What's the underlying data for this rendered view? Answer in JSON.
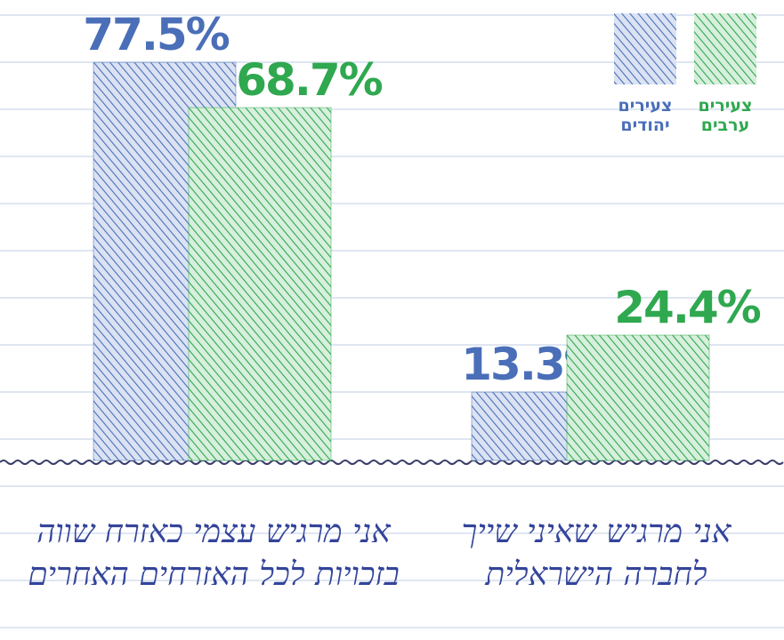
{
  "chart_data": {
    "type": "bar",
    "categories": [
      "אני מרגיש עצמי כאזרח שווה בזכויות לכל האזרחים האחרים",
      "אני מרגיש שאיני שייך לחברה הישראלית"
    ],
    "series": [
      {
        "name": "צעירים יהודים",
        "color": "#4a6fb8",
        "values": [
          77.5,
          13.3
        ],
        "value_labels": [
          "77.5%",
          "13.3%"
        ]
      },
      {
        "name": "צעירים ערבים",
        "color": "#2fa84f",
        "values": [
          68.7,
          24.4
        ],
        "value_labels": [
          "68.7%",
          "24.4%"
        ]
      }
    ],
    "ylim": [
      0,
      90
    ]
  }
}
